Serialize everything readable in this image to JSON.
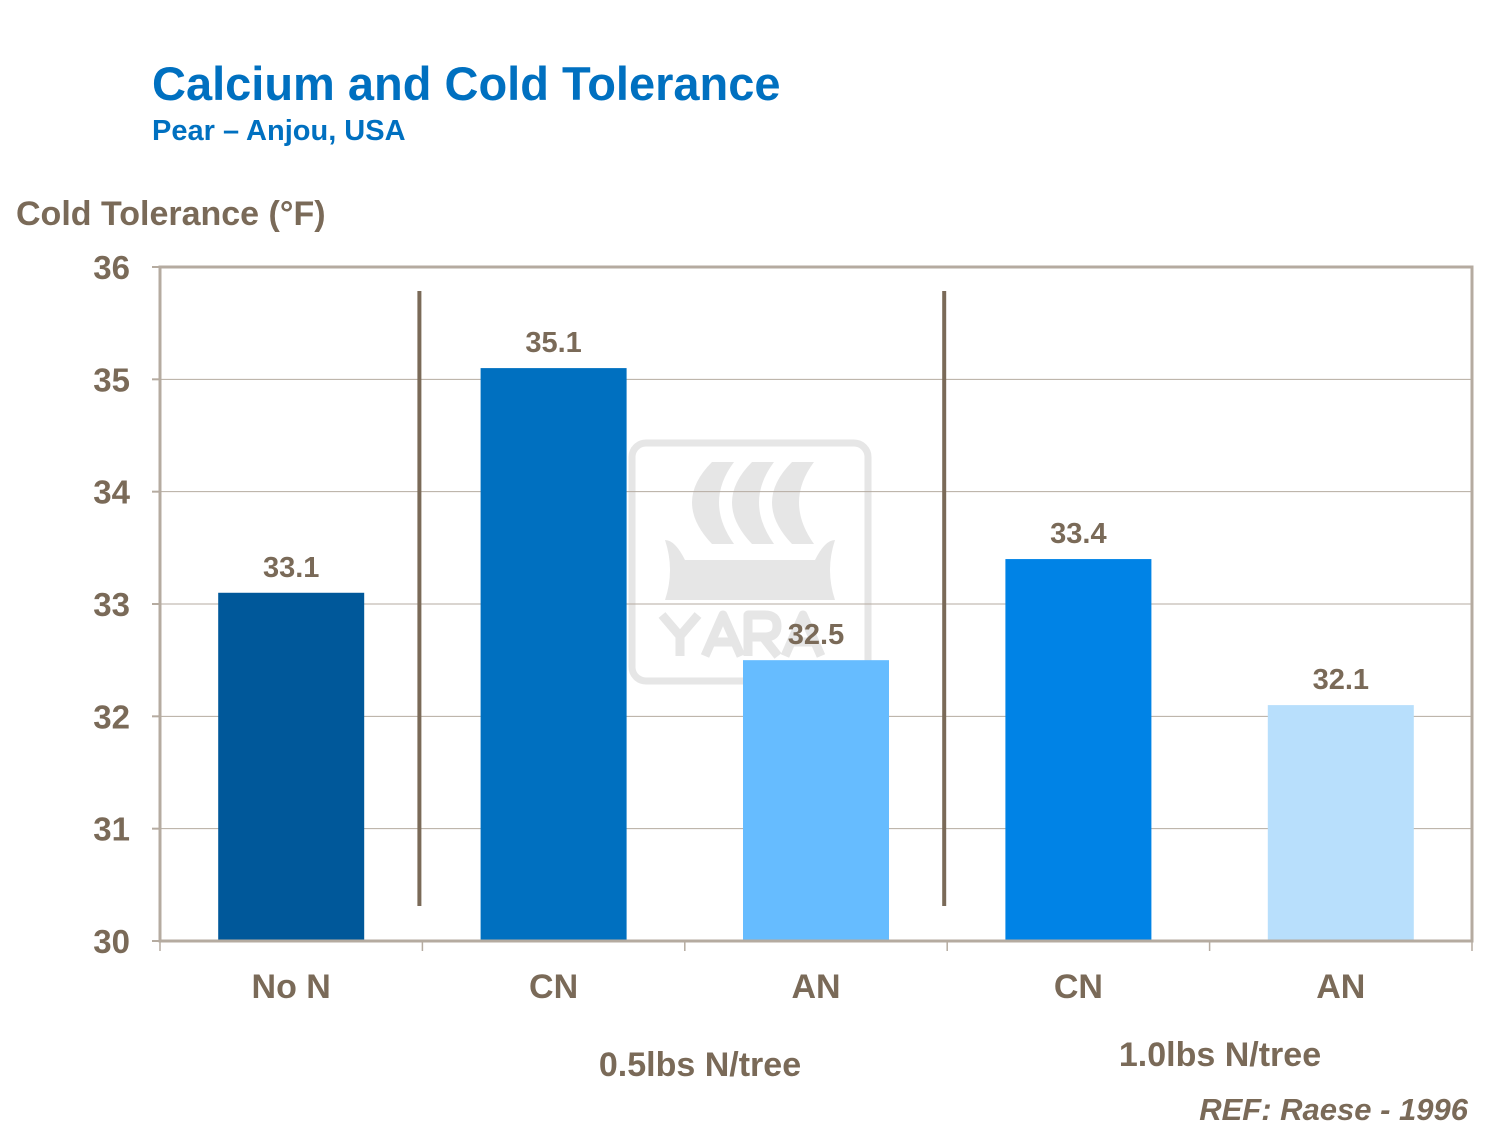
{
  "chart_data": {
    "type": "bar",
    "title": "Calcium and Cold Tolerance",
    "subtitle": "Pear – Anjou, USA",
    "ylabel": "Cold Tolerance (°F)",
    "xlabel": "",
    "ylim": [
      30,
      36
    ],
    "yticks": [
      30,
      31,
      32,
      33,
      34,
      35,
      36
    ],
    "grid": true,
    "categories": [
      "No N",
      "CN",
      "AN",
      "CN",
      "AN"
    ],
    "values": [
      33.1,
      35.1,
      32.5,
      33.4,
      32.1
    ],
    "data_labels": [
      "33.1",
      "35.1",
      "32.5",
      "33.4",
      "32.1"
    ],
    "colors": [
      "#00589a",
      "#0070c0",
      "#66bcff",
      "#0083e6",
      "#b8dffc"
    ],
    "groups": [
      {
        "label": "0.5lbs N/tree",
        "categories": [
          1,
          2
        ]
      },
      {
        "label": "1.0lbs N/tree",
        "categories": [
          3,
          4
        ]
      }
    ],
    "reference": "REF: Raese - 1996",
    "watermark": "YARA"
  }
}
